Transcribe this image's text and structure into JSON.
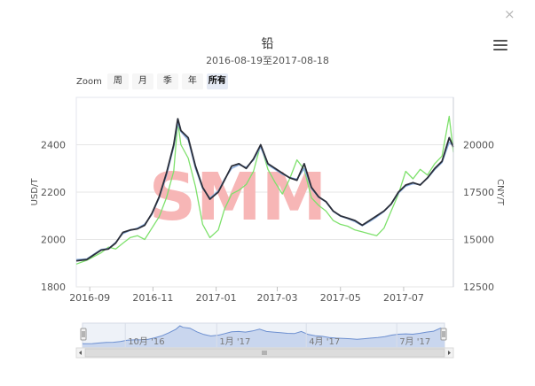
{
  "close_symbol": "×",
  "menu_icon": "hamburger-menu-icon",
  "zoom": {
    "label": "Zoom",
    "buttons": [
      "周",
      "月",
      "季",
      "年",
      "所有"
    ],
    "active": "所有"
  },
  "watermark": "SMM",
  "colors": {
    "usd_line": "#2b2f3a",
    "cny_line": "#7ee16c",
    "avg_line": "#8aaee0",
    "navigator_fill": "#c9d6ee",
    "navigator_line": "#6c8fd0",
    "watermark": "#f7b6b6"
  },
  "chart_data": {
    "type": "line",
    "title": "铅",
    "subtitle": "2016-08-19至2017-08-18",
    "x_range": [
      "2016-08-19",
      "2017-08-18"
    ],
    "x_ticks": [
      "2016-09",
      "2016-11",
      "2017-01",
      "2017-03",
      "2017-05",
      "2017-07"
    ],
    "y_left": {
      "label": "USD/T",
      "range": [
        1800,
        2600
      ],
      "ticks": [
        1800,
        2000,
        2200,
        2400
      ]
    },
    "y_right": {
      "label": "CNY/T",
      "range": [
        12500,
        22500
      ],
      "ticks": [
        12500,
        15000,
        17500,
        20000
      ]
    },
    "grid": true,
    "legend": "none",
    "series": [
      {
        "axis": "left",
        "points": [
          [
            "2016-08-19",
            1910
          ],
          [
            "2016-08-29",
            1915
          ],
          [
            "2016-09-05",
            1935
          ],
          [
            "2016-09-12",
            1955
          ],
          [
            "2016-09-19",
            1960
          ],
          [
            "2016-09-26",
            1985
          ],
          [
            "2016-10-03",
            2030
          ],
          [
            "2016-10-10",
            2040
          ],
          [
            "2016-10-17",
            2045
          ],
          [
            "2016-10-24",
            2060
          ],
          [
            "2016-10-31",
            2110
          ],
          [
            "2016-11-07",
            2180
          ],
          [
            "2016-11-14",
            2280
          ],
          [
            "2016-11-21",
            2400
          ],
          [
            "2016-11-25",
            2510
          ],
          [
            "2016-11-28",
            2460
          ],
          [
            "2016-12-05",
            2430
          ],
          [
            "2016-12-12",
            2310
          ],
          [
            "2016-12-19",
            2220
          ],
          [
            "2016-12-26",
            2170
          ],
          [
            "2017-01-03",
            2200
          ],
          [
            "2017-01-09",
            2250
          ],
          [
            "2017-01-16",
            2310
          ],
          [
            "2017-01-23",
            2320
          ],
          [
            "2017-01-30",
            2300
          ],
          [
            "2017-02-06",
            2340
          ],
          [
            "2017-02-13",
            2400
          ],
          [
            "2017-02-20",
            2320
          ],
          [
            "2017-02-27",
            2300
          ],
          [
            "2017-03-06",
            2280
          ],
          [
            "2017-03-13",
            2260
          ],
          [
            "2017-03-20",
            2250
          ],
          [
            "2017-03-27",
            2320
          ],
          [
            "2017-04-03",
            2220
          ],
          [
            "2017-04-10",
            2180
          ],
          [
            "2017-04-17",
            2160
          ],
          [
            "2017-04-24",
            2120
          ],
          [
            "2017-05-01",
            2100
          ],
          [
            "2017-05-08",
            2090
          ],
          [
            "2017-05-15",
            2080
          ],
          [
            "2017-05-22",
            2060
          ],
          [
            "2017-05-29",
            2080
          ],
          [
            "2017-06-05",
            2100
          ],
          [
            "2017-06-12",
            2120
          ],
          [
            "2017-06-19",
            2150
          ],
          [
            "2017-06-26",
            2200
          ],
          [
            "2017-07-03",
            2230
          ],
          [
            "2017-07-10",
            2240
          ],
          [
            "2017-07-17",
            2230
          ],
          [
            "2017-07-24",
            2260
          ],
          [
            "2017-07-31",
            2300
          ],
          [
            "2017-08-07",
            2330
          ],
          [
            "2017-08-14",
            2430
          ],
          [
            "2017-08-18",
            2390
          ]
        ]
      },
      {
        "axis": "left",
        "points": [
          [
            "2016-08-19",
            1915
          ],
          [
            "2016-08-29",
            1918
          ],
          [
            "2016-09-05",
            1938
          ],
          [
            "2016-09-12",
            1958
          ],
          [
            "2016-09-19",
            1962
          ],
          [
            "2016-09-26",
            1988
          ],
          [
            "2016-10-03",
            2025
          ],
          [
            "2016-10-10",
            2038
          ],
          [
            "2016-10-17",
            2048
          ],
          [
            "2016-10-24",
            2065
          ],
          [
            "2016-10-31",
            2105
          ],
          [
            "2016-11-07",
            2175
          ],
          [
            "2016-11-14",
            2270
          ],
          [
            "2016-11-21",
            2390
          ],
          [
            "2016-11-25",
            2490
          ],
          [
            "2016-11-28",
            2455
          ],
          [
            "2016-12-05",
            2420
          ],
          [
            "2016-12-12",
            2300
          ],
          [
            "2016-12-19",
            2215
          ],
          [
            "2016-12-26",
            2175
          ],
          [
            "2017-01-03",
            2205
          ],
          [
            "2017-01-09",
            2255
          ],
          [
            "2017-01-16",
            2300
          ],
          [
            "2017-01-23",
            2315
          ],
          [
            "2017-01-30",
            2305
          ],
          [
            "2017-02-06",
            2335
          ],
          [
            "2017-02-13",
            2390
          ],
          [
            "2017-02-20",
            2315
          ],
          [
            "2017-02-27",
            2295
          ],
          [
            "2017-03-06",
            2275
          ],
          [
            "2017-03-13",
            2262
          ],
          [
            "2017-03-20",
            2255
          ],
          [
            "2017-03-27",
            2300
          ],
          [
            "2017-04-03",
            2215
          ],
          [
            "2017-04-10",
            2178
          ],
          [
            "2017-04-17",
            2158
          ],
          [
            "2017-04-24",
            2118
          ],
          [
            "2017-05-01",
            2098
          ],
          [
            "2017-05-08",
            2088
          ],
          [
            "2017-05-15",
            2075
          ],
          [
            "2017-05-22",
            2058
          ],
          [
            "2017-05-29",
            2075
          ],
          [
            "2017-06-05",
            2095
          ],
          [
            "2017-06-12",
            2118
          ],
          [
            "2017-06-19",
            2148
          ],
          [
            "2017-06-26",
            2195
          ],
          [
            "2017-07-03",
            2225
          ],
          [
            "2017-07-10",
            2235
          ],
          [
            "2017-07-17",
            2232
          ],
          [
            "2017-07-24",
            2258
          ],
          [
            "2017-07-31",
            2295
          ],
          [
            "2017-08-07",
            2325
          ],
          [
            "2017-08-14",
            2410
          ],
          [
            "2017-08-18",
            2395
          ]
        ]
      },
      {
        "axis": "right",
        "points": [
          [
            "2016-08-19",
            13700
          ],
          [
            "2016-08-29",
            13900
          ],
          [
            "2016-09-05",
            14100
          ],
          [
            "2016-09-12",
            14300
          ],
          [
            "2016-09-19",
            14600
          ],
          [
            "2016-09-26",
            14500
          ],
          [
            "2016-10-03",
            14800
          ],
          [
            "2016-10-10",
            15100
          ],
          [
            "2016-10-17",
            15200
          ],
          [
            "2016-10-24",
            15000
          ],
          [
            "2016-10-31",
            15600
          ],
          [
            "2016-11-07",
            16200
          ],
          [
            "2016-11-14",
            17200
          ],
          [
            "2016-11-21",
            18600
          ],
          [
            "2016-11-25",
            21200
          ],
          [
            "2016-11-28",
            20000
          ],
          [
            "2016-12-05",
            19300
          ],
          [
            "2016-12-12",
            17800
          ],
          [
            "2016-12-19",
            15800
          ],
          [
            "2016-12-26",
            15100
          ],
          [
            "2017-01-03",
            15500
          ],
          [
            "2017-01-09",
            16600
          ],
          [
            "2017-01-16",
            17400
          ],
          [
            "2017-01-23",
            17600
          ],
          [
            "2017-01-30",
            17900
          ],
          [
            "2017-02-06",
            18600
          ],
          [
            "2017-02-13",
            20000
          ],
          [
            "2017-02-20",
            18700
          ],
          [
            "2017-02-27",
            18000
          ],
          [
            "2017-03-06",
            17400
          ],
          [
            "2017-03-13",
            18200
          ],
          [
            "2017-03-20",
            19200
          ],
          [
            "2017-03-27",
            18700
          ],
          [
            "2017-04-03",
            17200
          ],
          [
            "2017-04-10",
            16800
          ],
          [
            "2017-04-17",
            16500
          ],
          [
            "2017-04-24",
            16000
          ],
          [
            "2017-05-01",
            15800
          ],
          [
            "2017-05-08",
            15700
          ],
          [
            "2017-05-15",
            15500
          ],
          [
            "2017-05-22",
            15400
          ],
          [
            "2017-05-29",
            15300
          ],
          [
            "2017-06-05",
            15200
          ],
          [
            "2017-06-12",
            15600
          ],
          [
            "2017-06-19",
            16500
          ],
          [
            "2017-06-26",
            17400
          ],
          [
            "2017-07-03",
            18600
          ],
          [
            "2017-07-10",
            18200
          ],
          [
            "2017-07-17",
            18700
          ],
          [
            "2017-07-24",
            18400
          ],
          [
            "2017-07-31",
            19000
          ],
          [
            "2017-08-07",
            19400
          ],
          [
            "2017-08-14",
            21500
          ],
          [
            "2017-08-18",
            19600
          ]
        ]
      }
    ],
    "navigator": {
      "x_labels": [
        "10月 '16",
        "1月 '17",
        "4月 '17",
        "7月 '17"
      ]
    }
  }
}
